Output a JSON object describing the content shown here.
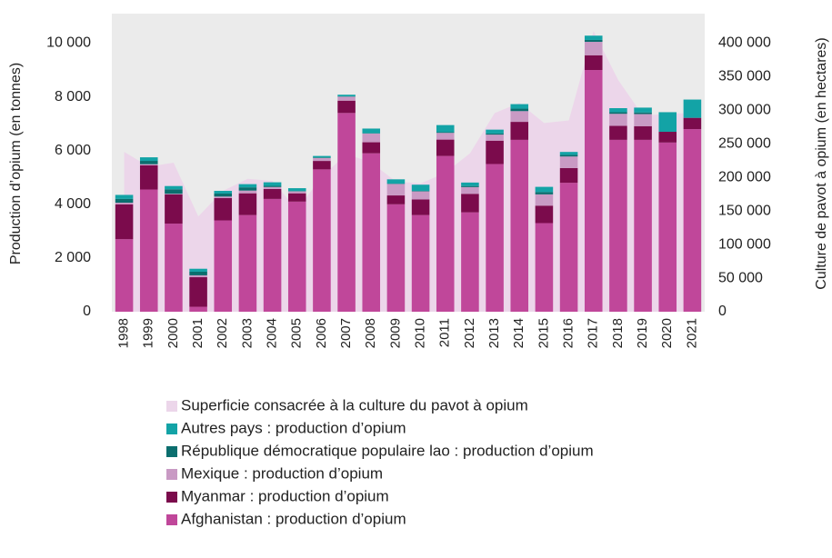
{
  "chart_data": {
    "type": "bar",
    "stacked": true,
    "categories": [
      "1998",
      "1999",
      "2000",
      "2001",
      "2002",
      "2003",
      "2004",
      "2005",
      "2006",
      "2007",
      "2008",
      "2009",
      "2010",
      "2011",
      "2012",
      "2013",
      "2014",
      "2015",
      "2016",
      "2017",
      "2018",
      "2019",
      "2020",
      "2021"
    ],
    "series": [
      {
        "name": "Superficie consacrée à la culture du pavot à opium",
        "type": "area",
        "axis": "y2",
        "color": "#ecd6ea",
        "values": [
          238000,
          216000,
          222000,
          142000,
          180000,
          198000,
          195000,
          152000,
          201000,
          235000,
          222000,
          194000,
          191000,
          207000,
          236000,
          296000,
          311000,
          281000,
          285000,
          418000,
          345000,
          292000,
          295000,
          296000
        ]
      },
      {
        "name": "Autres pays : production d’opium",
        "color": "#13a3a6",
        "values": [
          150,
          133,
          122,
          110,
          100,
          119,
          134,
          105,
          57,
          62,
          175,
          164,
          232,
          265,
          129,
          144,
          168,
          196,
          110,
          160,
          150,
          180,
          730,
          680
        ]
      },
      {
        "name": "République démocratique populaire lao : production d’opium",
        "color": "#0b6e6e",
        "values": [
          140,
          124,
          167,
          134,
          112,
          120,
          43,
          14,
          20,
          9,
          10,
          11,
          18,
          25,
          41,
          41,
          92,
          84,
          60,
          70,
          60,
          60,
          0,
          0
        ]
      },
      {
        "name": "Mexique : production d’opium",
        "color": "#c99ac4",
        "values": [
          60,
          43,
          21,
          71,
          58,
          101,
          73,
          71,
          108,
          149,
          325,
          425,
          300,
          250,
          250,
          225,
          400,
          420,
          430,
          500,
          450,
          450,
          0,
          0
        ]
      },
      {
        "name": "Myanmar : production d’opium",
        "color": "#7b0b4c",
        "values": [
          1300,
          900,
          1090,
          1100,
          830,
          810,
          370,
          310,
          315,
          460,
          410,
          330,
          580,
          610,
          690,
          870,
          670,
          650,
          550,
          550,
          520,
          510,
          400,
          420
        ]
      },
      {
        "name": "Afghanistan : production d’opium",
        "color": "#c0479a",
        "values": [
          2700,
          4550,
          3280,
          185,
          3400,
          3600,
          4200,
          4100,
          5300,
          7400,
          5900,
          4000,
          3600,
          5800,
          3700,
          5500,
          6400,
          3300,
          4800,
          9000,
          6400,
          6400,
          6300,
          6800
        ]
      }
    ],
    "ylabel": "Production d’opium (en tonnes)",
    "y2label": "Culture de pavot à opium (en hectares)",
    "ylim": [
      0,
      11100
    ],
    "yticks": [
      0,
      {
        "value": 2000,
        "label": "2 000"
      },
      {
        "value": 4000,
        "label": "4 000"
      },
      {
        "value": 6000,
        "label": "6 000"
      },
      {
        "value": 8000,
        "label": "8 000"
      },
      {
        "value": 10000,
        "label": "10 000"
      }
    ],
    "y2lim": [
      0,
      444000
    ],
    "y2ticks": [
      0,
      {
        "value": 50000,
        "label": "50 000"
      },
      {
        "value": 100000,
        "label": "100 000"
      },
      {
        "value": 150000,
        "label": "150 000"
      },
      {
        "value": 200000,
        "label": "200 000"
      },
      {
        "value": 250000,
        "label": "250 000"
      },
      {
        "value": 300000,
        "label": "300 000"
      },
      {
        "value": 350000,
        "label": "350 000"
      },
      {
        "value": 400000,
        "label": "400 000"
      }
    ],
    "plot_background": "#ebebeb",
    "legend": "bottom"
  }
}
